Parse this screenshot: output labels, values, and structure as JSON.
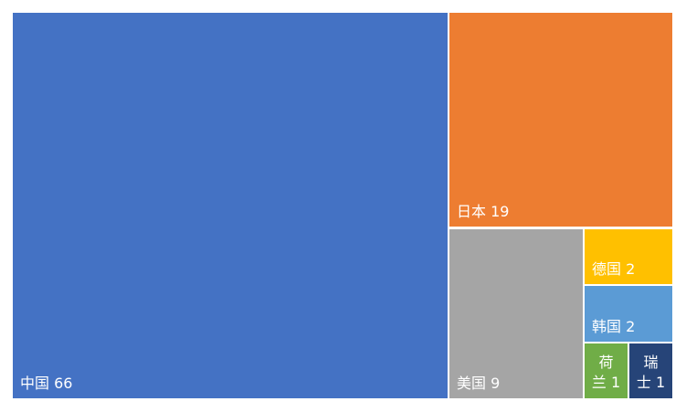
{
  "chart_data": {
    "type": "treemap",
    "title": "",
    "items": [
      {
        "name": "中国",
        "value": 66,
        "label": "中国 66",
        "color": "#4472C4"
      },
      {
        "name": "日本",
        "value": 19,
        "label": "日本 19",
        "color": "#ED7D31"
      },
      {
        "name": "美国",
        "value": 9,
        "label": "美国 9",
        "color": "#A5A5A5"
      },
      {
        "name": "德国",
        "value": 2,
        "label": "德国 2",
        "color": "#FFC000"
      },
      {
        "name": "韩国",
        "value": 2,
        "label": "韩国 2",
        "color": "#5B9BD5"
      },
      {
        "name": "荷兰",
        "value": 1,
        "label_lines": [
          "荷",
          "兰 1"
        ],
        "color": "#70AD47"
      },
      {
        "name": "瑞士",
        "value": 1,
        "label_lines": [
          "瑞",
          "士 1"
        ],
        "color": "#264478"
      }
    ]
  }
}
